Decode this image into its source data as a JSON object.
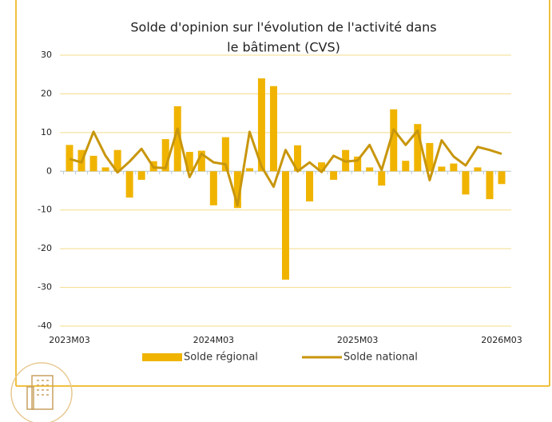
{
  "chart_data": {
    "type": "bar_line",
    "title": [
      "Solde d'opinion sur l'évolution de l'activité dans",
      "le bâtiment (CVS)"
    ],
    "categories": [
      "2023M03",
      null,
      null,
      null,
      null,
      null,
      null,
      null,
      null,
      null,
      null,
      null,
      "2024M03",
      null,
      null,
      null,
      null,
      null,
      null,
      null,
      null,
      null,
      null,
      null,
      "2025M03",
      null,
      null,
      null,
      null,
      null,
      null,
      null,
      null,
      null,
      null,
      null,
      "2026M03"
    ],
    "series": [
      {
        "name": "Solde régional",
        "type": "bar",
        "color": "#f0b400",
        "values": [
          6.8,
          5.5,
          4,
          1,
          5.5,
          -6.8,
          -2.2,
          2.6,
          8.3,
          16.8,
          5,
          5.3,
          -8.8,
          8.8,
          -9.5,
          0.8,
          24,
          22,
          -28,
          6.7,
          -7.8,
          2.3,
          -2.2,
          5.5,
          3.8,
          1,
          -3.7,
          16,
          2.7,
          12.2,
          7.3,
          1.2,
          2,
          -6,
          1,
          -7.2,
          -3.3
        ]
      },
      {
        "name": "Solde national",
        "type": "line",
        "color": "#c8960c",
        "values": [
          3.2,
          2.3,
          10.2,
          4,
          -0.3,
          2.5,
          5.8,
          1,
          0.8,
          11,
          -1.5,
          4.5,
          2.3,
          1.8,
          -8.8,
          10.2,
          1.2,
          -4,
          5.5,
          0,
          2.3,
          -0.2,
          4,
          2.5,
          2.8,
          6.8,
          0.3,
          10.8,
          6.8,
          10.5,
          -2.3,
          8,
          3.8,
          1.5,
          6.3,
          5.5,
          4.5
        ]
      }
    ],
    "ylim": [
      -40,
      30
    ],
    "yticks": [
      -40,
      -30,
      -20,
      -10,
      0,
      10,
      20,
      30
    ],
    "grid": true
  }
}
